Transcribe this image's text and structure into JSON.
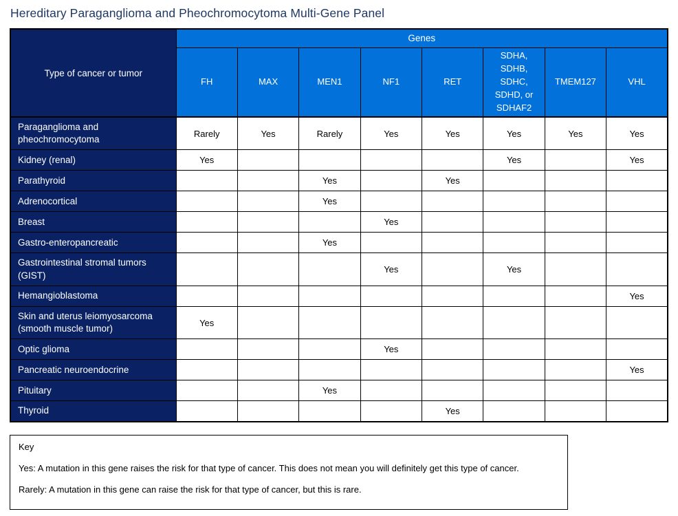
{
  "title": "Hereditary Paraganglioma and Pheochromocytoma Multi-Gene Panel",
  "colors": {
    "title_text": "#1F3864",
    "navy_header": "#0A2264",
    "blue_header": "#0272DA",
    "grid_border": "#000000"
  },
  "table": {
    "corner_header": "Type of cancer or tumor",
    "genes_band_label": "Genes",
    "gene_columns": [
      "FH",
      "MAX",
      "MEN1",
      "NF1",
      "RET",
      "SDHA,\nSDHB,\nSDHC,\nSDHD, or\nSDHAF2",
      "TMEM127",
      "VHL"
    ],
    "rows": [
      {
        "label": "Paraganglioma and pheochromocytoma",
        "cells": [
          "Rarely",
          "Yes",
          "Rarely",
          "Yes",
          "Yes",
          "Yes",
          "Yes",
          "Yes"
        ]
      },
      {
        "label": "Kidney (renal)",
        "cells": [
          "Yes",
          "",
          "",
          "",
          "",
          "Yes",
          "",
          "Yes"
        ]
      },
      {
        "label": "Parathyroid",
        "cells": [
          "",
          "",
          "Yes",
          "",
          "Yes",
          "",
          "",
          ""
        ]
      },
      {
        "label": "Adrenocortical",
        "cells": [
          "",
          "",
          "Yes",
          "",
          "",
          "",
          "",
          ""
        ]
      },
      {
        "label": "Breast",
        "cells": [
          "",
          "",
          "",
          "Yes",
          "",
          "",
          "",
          ""
        ]
      },
      {
        "label": "Gastro-enteropancreatic",
        "cells": [
          "",
          "",
          "Yes",
          "",
          "",
          "",
          "",
          ""
        ]
      },
      {
        "label": "Gastrointestinal stromal tumors (GIST)",
        "cells": [
          "",
          "",
          "",
          "Yes",
          "",
          "Yes",
          "",
          ""
        ]
      },
      {
        "label": "Hemangioblastoma",
        "cells": [
          "",
          "",
          "",
          "",
          "",
          "",
          "",
          "Yes"
        ]
      },
      {
        "label": "Skin and uterus leiomyosarcoma (smooth muscle tumor)",
        "cells": [
          "Yes",
          "",
          "",
          "",
          "",
          "",
          "",
          ""
        ]
      },
      {
        "label": "Optic glioma",
        "cells": [
          "",
          "",
          "",
          "Yes",
          "",
          "",
          "",
          ""
        ]
      },
      {
        "label": "Pancreatic neuroendocrine",
        "cells": [
          "",
          "",
          "",
          "",
          "",
          "",
          "",
          "Yes"
        ]
      },
      {
        "label": "Pituitary",
        "cells": [
          "",
          "",
          "Yes",
          "",
          "",
          "",
          "",
          ""
        ]
      },
      {
        "label": "Thyroid",
        "cells": [
          "",
          "",
          "",
          "",
          "Yes",
          "",
          "",
          ""
        ]
      }
    ]
  },
  "key": {
    "heading": "Key",
    "lines": [
      "Yes: A mutation in this gene raises the risk for that type of cancer. This does not mean you will definitely get this type of cancer.",
      "Rarely: A mutation in this gene can raise the risk for that type of cancer, but this is rare."
    ]
  }
}
